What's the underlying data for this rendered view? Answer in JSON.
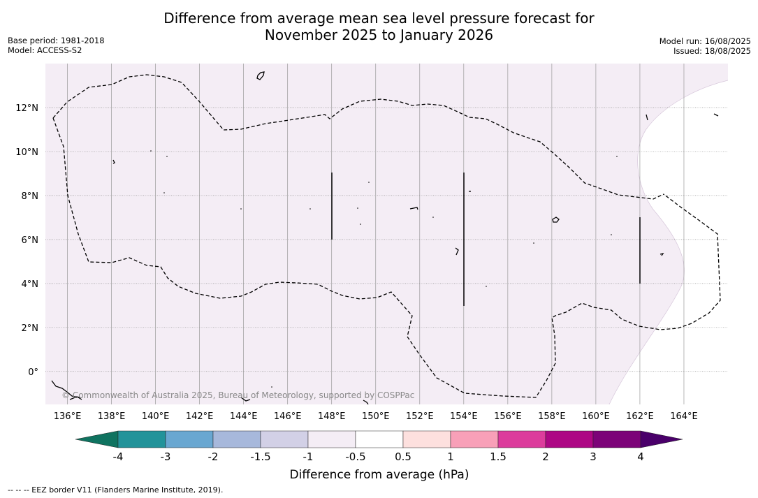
{
  "title": {
    "line1": "Difference from average mean sea level pressure forecast for",
    "line2": "November 2025 to January 2026"
  },
  "meta": {
    "base_period": "Base period: 1981-2018",
    "model": "Model: ACCESS-S2",
    "model_run": "Model run: 16/08/2025",
    "issued": "Issued: 18/08/2025"
  },
  "map": {
    "lon_range": [
      135.0,
      166.0
    ],
    "lat_range": [
      -1.5,
      14.0
    ],
    "lon_ticks": [
      "136°E",
      "138°E",
      "140°E",
      "142°E",
      "144°E",
      "146°E",
      "148°E",
      "150°E",
      "152°E",
      "154°E",
      "156°E",
      "158°E",
      "160°E",
      "162°E",
      "164°E"
    ],
    "lat_ticks": [
      "12°N",
      "10°N",
      "8°N",
      "6°N",
      "4°N",
      "2°N",
      "0°"
    ],
    "background_fill_class": "-0.5 to -1 hPa",
    "colors": {
      "anomaly_fill": "#f4edf5",
      "gridline": "#999999",
      "eez_border": "#000000"
    },
    "credit": "© Commonwealth of Australia 2025, Bureau of Meteorology, supported by COSPPac"
  },
  "colorbar": {
    "label": "Difference from average (hPa)",
    "tick_labels": [
      "-4",
      "-3",
      "-2",
      "-1.5",
      "-1",
      "-0.5",
      "0.5",
      "1",
      "1.5",
      "2",
      "3",
      "4"
    ],
    "colors": {
      "below_min": "#0f7360",
      "bins": [
        "#22939a",
        "#69a7d1",
        "#a7b8db",
        "#d2d0e6",
        "#f4edf5",
        "#ffffff",
        "#fde0de",
        "#f8a0b8",
        "#dc3c9c",
        "#ad0784",
        "#7c0378"
      ],
      "above_max": "#4a006a"
    }
  },
  "footnote": "--  --  -- EEZ border V11 (Flanders Marine Institute, 2019)."
}
